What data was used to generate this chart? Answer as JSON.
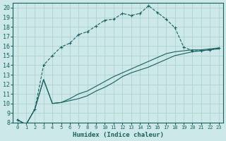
{
  "xlabel": "Humidex (Indice chaleur)",
  "bg_color": "#cce8e8",
  "grid_color": "#b0d0d0",
  "line_color": "#1a6060",
  "xlim": [
    -0.5,
    23.5
  ],
  "ylim": [
    8,
    20.5
  ],
  "xticks": [
    0,
    1,
    2,
    3,
    4,
    5,
    6,
    7,
    8,
    9,
    10,
    11,
    12,
    13,
    14,
    15,
    16,
    17,
    18,
    19,
    20,
    21,
    22,
    23
  ],
  "yticks": [
    8,
    9,
    10,
    11,
    12,
    13,
    14,
    15,
    16,
    17,
    18,
    19,
    20
  ],
  "line1_x": [
    0,
    1,
    2,
    3,
    4,
    5,
    6,
    7,
    8,
    9,
    10,
    11,
    12,
    13,
    14,
    15,
    16,
    17,
    18,
    19,
    20,
    21,
    22,
    23
  ],
  "line1_y": [
    8.3,
    7.8,
    9.4,
    14.0,
    15.0,
    15.9,
    16.3,
    17.2,
    17.5,
    18.1,
    18.7,
    18.8,
    19.4,
    19.2,
    19.4,
    20.2,
    19.5,
    18.8,
    17.9,
    15.9,
    15.5,
    15.5,
    15.6,
    15.8
  ],
  "line2_x": [
    0,
    1,
    2,
    3,
    4,
    5,
    6,
    7,
    8,
    9,
    10,
    11,
    12,
    13,
    14,
    15,
    16,
    17,
    18,
    19,
    20,
    21,
    22,
    23
  ],
  "line2_y": [
    8.3,
    7.8,
    9.4,
    12.5,
    10.0,
    10.1,
    10.3,
    10.5,
    10.8,
    11.3,
    11.7,
    12.2,
    12.8,
    13.2,
    13.5,
    13.8,
    14.2,
    14.6,
    15.0,
    15.2,
    15.4,
    15.5,
    15.6,
    15.7
  ],
  "line3_x": [
    0,
    1,
    2,
    3,
    4,
    5,
    6,
    7,
    8,
    9,
    10,
    11,
    12,
    13,
    14,
    15,
    16,
    17,
    18,
    19,
    20,
    21,
    22,
    23
  ],
  "line3_y": [
    8.3,
    7.8,
    9.4,
    12.5,
    10.0,
    10.1,
    10.5,
    11.0,
    11.3,
    11.8,
    12.3,
    12.8,
    13.2,
    13.6,
    14.0,
    14.4,
    14.8,
    15.2,
    15.4,
    15.5,
    15.6,
    15.6,
    15.7,
    15.8
  ]
}
